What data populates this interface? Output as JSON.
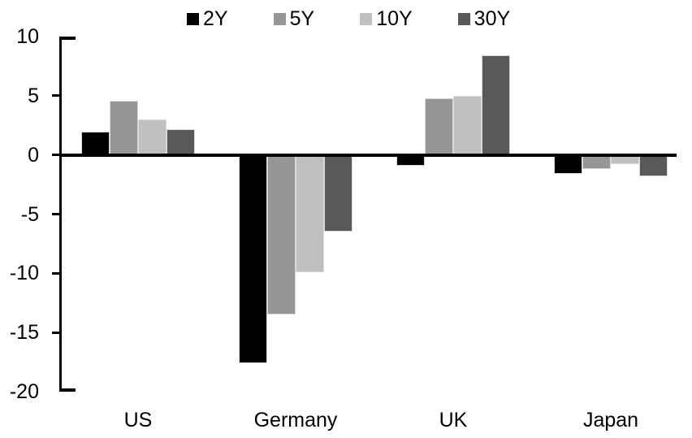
{
  "chart_data": {
    "type": "bar",
    "title": "",
    "xlabel": "",
    "ylabel": "",
    "categories": [
      "US",
      "Germany",
      "UK",
      "Japan"
    ],
    "series": [
      {
        "name": "2Y",
        "color": "#000000",
        "values": [
          2.0,
          -17.6,
          -0.9,
          -1.6
        ]
      },
      {
        "name": "5Y",
        "color": "#969696",
        "values": [
          4.6,
          -13.5,
          4.8,
          -1.2
        ]
      },
      {
        "name": "10Y",
        "color": "#c0c0c0",
        "values": [
          3.0,
          -9.9,
          5.0,
          -0.8
        ]
      },
      {
        "name": "30Y",
        "color": "#595959",
        "values": [
          2.2,
          -6.5,
          8.4,
          -1.8
        ]
      }
    ],
    "ylim": [
      -20,
      10
    ],
    "yticks": [
      10,
      5,
      0,
      -5,
      -10,
      -15,
      -20
    ],
    "grid": false,
    "legend_position": "top"
  },
  "colors": {
    "axis": "#000000",
    "zero_line": "#000000",
    "bar_border": "#d9d9d9",
    "background": "#ffffff"
  }
}
